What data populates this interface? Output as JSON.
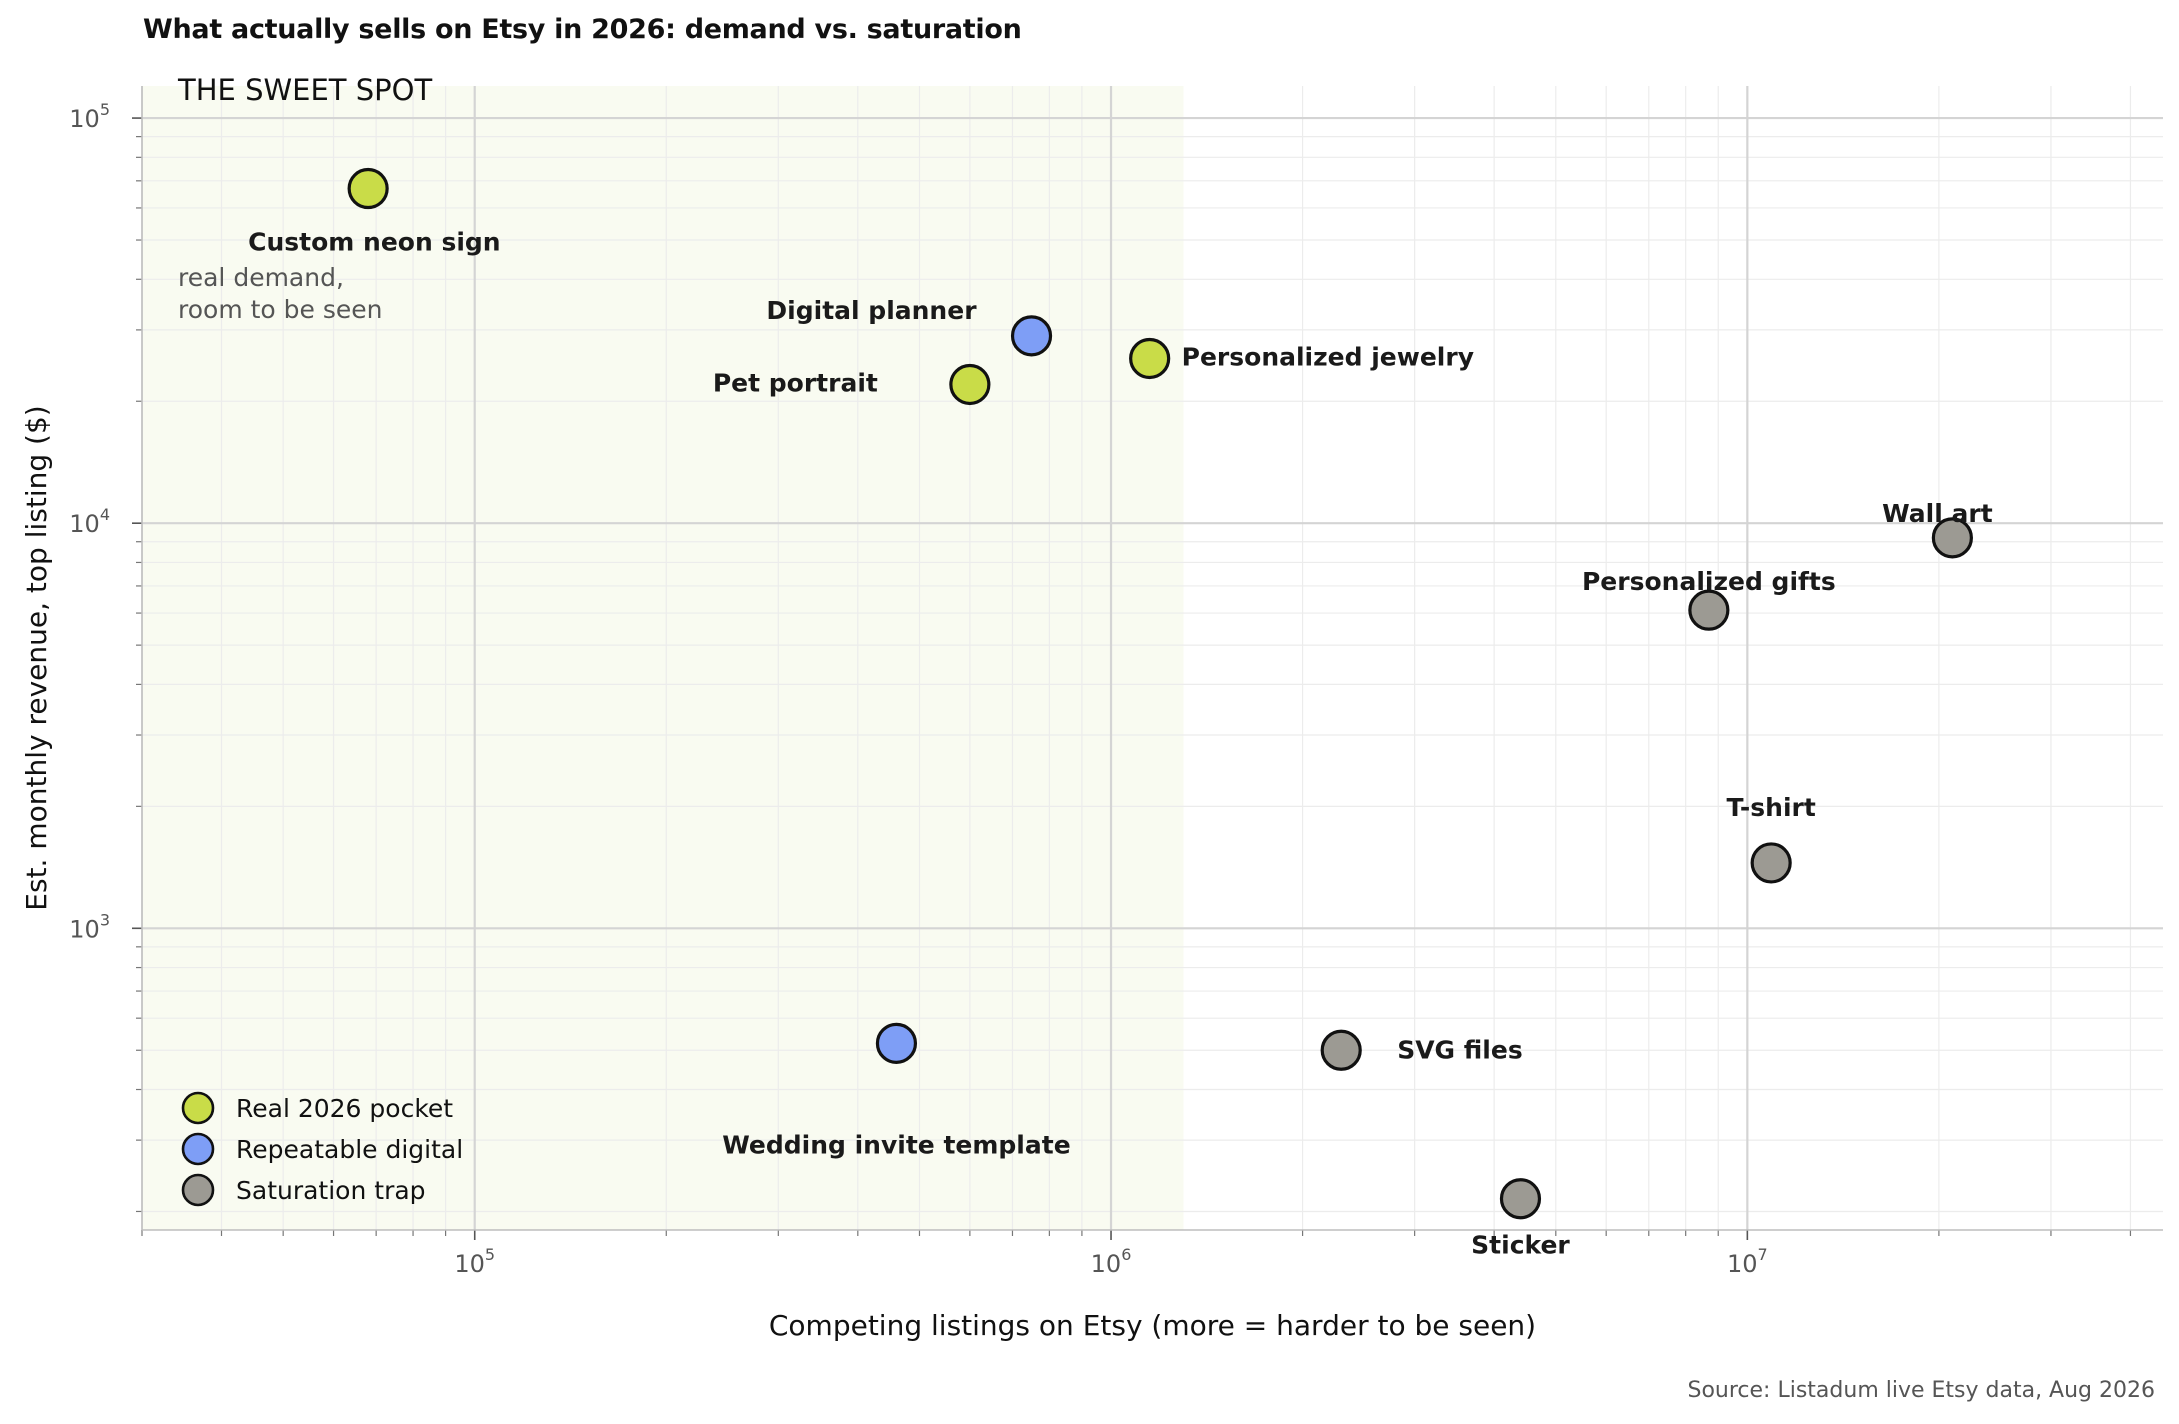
{
  "title": "What actually sells on Etsy in 2026: demand vs. saturation",
  "source": "Source: Listadum live Etsy data, Aug 2026",
  "chart_data": {
    "type": "scatter",
    "title": "What actually sells on Etsy in 2026: demand vs. saturation",
    "xlabel": "Competing listings on Etsy  (more = harder to be seen)",
    "ylabel": "Est. monthly revenue, top listing  ($)",
    "xscale": "log",
    "yscale": "log",
    "xlim": [
      30000,
      45000000
    ],
    "ylim": [
      180,
      120000
    ],
    "x_ticks": [
      {
        "base": "10",
        "exp": "5",
        "value": 100000
      },
      {
        "base": "10",
        "exp": "6",
        "value": 1000000
      },
      {
        "base": "10",
        "exp": "7",
        "value": 10000000
      }
    ],
    "y_ticks": [
      {
        "base": "10",
        "exp": "3",
        "value": 1000
      },
      {
        "base": "10",
        "exp": "4",
        "value": 10000
      },
      {
        "base": "10",
        "exp": "5",
        "value": 100000
      }
    ],
    "grid": true,
    "legend_position": "bottom-left",
    "sweet_spot": {
      "title": "THE SWEET SPOT",
      "subtitle": [
        "real demand,",
        "room to be seen"
      ],
      "x_max": 1300000,
      "color": "#f9fbf1"
    },
    "categories": [
      {
        "key": "pocket",
        "name": "Real 2026 pocket",
        "color": "#c9dc48"
      },
      {
        "key": "digital",
        "name": "Repeatable digital",
        "color": "#7e9ef6"
      },
      {
        "key": "trap",
        "name": "Saturation trap",
        "color": "#9c9a93"
      }
    ],
    "points": [
      {
        "label": "Custom neon sign",
        "x": 68000,
        "y": 67000,
        "cat": "pocket",
        "anchor": "start",
        "dx": -120,
        "dy": 53
      },
      {
        "label": "Digital planner",
        "x": 750000,
        "y": 29000,
        "cat": "digital",
        "anchor": "end",
        "dx": -55,
        "dy": -26
      },
      {
        "label": "Personalized jewelry",
        "x": 1150000,
        "y": 25500,
        "cat": "pocket",
        "anchor": "start",
        "dx": 32,
        "dy": -2
      },
      {
        "label": "Pet portrait",
        "x": 600000,
        "y": 22000,
        "cat": "pocket",
        "anchor": "end",
        "dx": -92,
        "dy": -2
      },
      {
        "label": "Wall art",
        "x": 21000000,
        "y": 9200,
        "cat": "trap",
        "anchor": "middle",
        "dx": -15,
        "dy": -25
      },
      {
        "label": "Personalized gifts",
        "x": 8700000,
        "y": 6100,
        "cat": "trap",
        "anchor": "middle",
        "dx": 0,
        "dy": -29
      },
      {
        "label": "T-shirt",
        "x": 10900000,
        "y": 1450,
        "cat": "trap",
        "anchor": "middle",
        "dx": 0,
        "dy": -56
      },
      {
        "label": "Wedding invite template",
        "x": 460000,
        "y": 520,
        "cat": "digital",
        "anchor": "middle",
        "dx": 0,
        "dy": 101
      },
      {
        "label": "SVG files",
        "x": 2300000,
        "y": 500,
        "cat": "trap",
        "anchor": "start",
        "dx": 56,
        "dy": -1
      },
      {
        "label": "Sticker",
        "x": 4400000,
        "y": 215,
        "cat": "trap",
        "anchor": "middle",
        "dx": 0,
        "dy": 46
      }
    ]
  }
}
